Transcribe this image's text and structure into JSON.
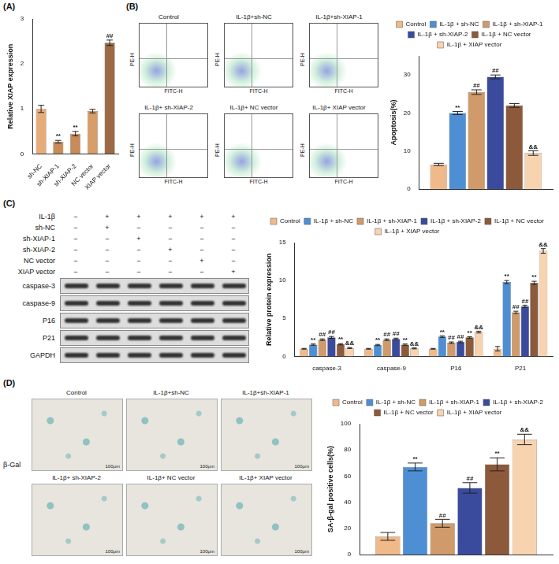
{
  "chart_data": [
    {
      "panel": "(A)",
      "type": "bar",
      "categories": [
        "sh-NC",
        "sh-XIAP-1",
        "sh-XIAP-2",
        "NC vector",
        "XIAP vector"
      ],
      "values": [
        1.0,
        0.27,
        0.45,
        0.95,
        2.47
      ],
      "errors": [
        0.08,
        0.03,
        0.05,
        0.04,
        0.06
      ],
      "significance": [
        "",
        "**",
        "**",
        "",
        "##"
      ],
      "colors": [
        "#e6ad7a",
        "#c98b57",
        "#c98b57",
        "#d79d69",
        "#9c6a44"
      ],
      "y_label": "Relative XIAP expression",
      "ylim": [
        0,
        3
      ],
      "yticks": [
        0,
        1,
        2,
        3
      ],
      "grid": false
    },
    {
      "panel": "(B)",
      "type": "bar",
      "categories": [
        null
      ],
      "series": [
        {
          "name": "Control",
          "color": "#f0b98a",
          "values": [
            6.5
          ],
          "errors": [
            0.3
          ],
          "significance": [
            ""
          ]
        },
        {
          "name": "IL-1β + sh-NC",
          "color": "#4e8fd4",
          "values": [
            20
          ],
          "errors": [
            0.4
          ],
          "significance": [
            "**"
          ]
        },
        {
          "name": "IL-1β + sh-XIAP-1",
          "color": "#d09a6a",
          "values": [
            25.5
          ],
          "errors": [
            0.6
          ],
          "significance": [
            "##"
          ]
        },
        {
          "name": "IL-1β + sh-XIAP-2",
          "color": "#3a4a9c",
          "values": [
            29.5
          ],
          "errors": [
            0.5
          ],
          "significance": [
            "##"
          ]
        },
        {
          "name": "IL-1β + NC vector",
          "color": "#8c5a3a",
          "values": [
            22
          ],
          "errors": [
            0.5
          ],
          "significance": [
            ""
          ]
        },
        {
          "name": "IL-1β + XIAP vector",
          "color": "#f7d3b0",
          "values": [
            9.5
          ],
          "errors": [
            0.6
          ],
          "significance": [
            "&&"
          ]
        }
      ],
      "y_label": "Apoptosis(%)",
      "ylim": [
        0,
        35
      ],
      "yticks": [
        0,
        10,
        20,
        30
      ],
      "grid": false,
      "legend": "top",
      "tick_labels": "y"
    },
    {
      "panel": "(C)",
      "type": "bar",
      "categories": [
        "caspase-3",
        "caspase-9",
        "P16",
        "P21"
      ],
      "series": [
        {
          "name": "Control",
          "color": "#f0b98a",
          "values": [
            1.0,
            1.0,
            1.0,
            1.0
          ],
          "errors": [
            0.05,
            0.05,
            0.05,
            0.3
          ],
          "significance": [
            "",
            "",
            "",
            ""
          ]
        },
        {
          "name": "IL-1β + sh-NC",
          "color": "#4e8fd4",
          "values": [
            1.55,
            1.5,
            2.6,
            9.8
          ],
          "errors": [
            0.08,
            0.08,
            0.1,
            0.2
          ],
          "significance": [
            "**",
            "**",
            "**",
            "**"
          ]
        },
        {
          "name": "IL-1β + sh-XIAP-1",
          "color": "#d09a6a",
          "values": [
            2.2,
            2.2,
            1.8,
            5.8
          ],
          "errors": [
            0.1,
            0.1,
            0.1,
            0.15
          ],
          "significance": [
            "##",
            "##",
            "##",
            "##"
          ]
        },
        {
          "name": "IL-1β + sh-XIAP-2",
          "color": "#3a4a9c",
          "values": [
            2.5,
            2.3,
            1.9,
            6.6
          ],
          "errors": [
            0.12,
            0.1,
            0.1,
            0.15
          ],
          "significance": [
            "##",
            "##",
            "##",
            "##"
          ]
        },
        {
          "name": "IL-1β + NC vector",
          "color": "#8c5a3a",
          "values": [
            1.6,
            1.55,
            2.5,
            9.7
          ],
          "errors": [
            0.08,
            0.08,
            0.1,
            0.2
          ],
          "significance": [
            "**",
            "**",
            "**",
            "**"
          ]
        },
        {
          "name": "IL-1β + XIAP vector",
          "color": "#f7d3b0",
          "values": [
            1.1,
            1.05,
            3.2,
            13.9
          ],
          "errors": [
            0.06,
            0.06,
            0.12,
            0.3
          ],
          "significance": [
            "&&",
            "&&",
            "&&",
            "&&"
          ]
        }
      ],
      "y_label": "Relative protein expression",
      "ylim": [
        0,
        15
      ],
      "yticks": [
        0,
        5,
        10,
        15
      ],
      "grid": false,
      "legend": "top"
    },
    {
      "panel": "(D)",
      "type": "bar",
      "categories": [
        null
      ],
      "series": [
        {
          "name": "Control",
          "color": "#f0b98a",
          "values": [
            14
          ],
          "errors": [
            3
          ],
          "significance": [
            ""
          ]
        },
        {
          "name": "IL-1β + sh-NC",
          "color": "#4e8fd4",
          "values": [
            67
          ],
          "errors": [
            3
          ],
          "significance": [
            "**"
          ]
        },
        {
          "name": "IL-1β + sh-XIAP-1",
          "color": "#d09a6a",
          "values": [
            24
          ],
          "errors": [
            3
          ],
          "significance": [
            "##"
          ]
        },
        {
          "name": "IL-1β + sh-XIAP-2",
          "color": "#3a4a9c",
          "values": [
            51
          ],
          "errors": [
            4
          ],
          "significance": [
            "##"
          ]
        },
        {
          "name": "IL-1β + NC vector",
          "color": "#8c5a3a",
          "values": [
            69
          ],
          "errors": [
            5
          ],
          "significance": [
            "**"
          ]
        },
        {
          "name": "IL-1β + XIAP vector",
          "color": "#f7d3b0",
          "values": [
            88
          ],
          "errors": [
            4
          ],
          "significance": [
            "&&"
          ]
        }
      ],
      "y_label": "SA-β-gal positive cells(%)",
      "ylim": [
        0,
        100
      ],
      "yticks": [
        0,
        20,
        40,
        60,
        80,
        100
      ],
      "grid": false,
      "legend": "top",
      "tick_labels": "y"
    }
  ],
  "flow": {
    "x_label": "FITC-H",
    "y_label": "PE-H",
    "titles": [
      "Control",
      "IL-1β+sh-NC",
      "IL-1β+sh-XIAP-1",
      "IL-1β+ sh-XIAP-2",
      "IL-1β+ NC vector",
      "IL-1β+ XIAP vector"
    ]
  },
  "blot": {
    "conditions": [
      {
        "label": "IL-1β",
        "marks": [
          "−",
          "+",
          "+",
          "+",
          "+",
          "+"
        ]
      },
      {
        "label": "sh-NC",
        "marks": [
          "−",
          "+",
          "−",
          "−",
          "−",
          "−"
        ]
      },
      {
        "label": "sh-XIAP-1",
        "marks": [
          "−",
          "−",
          "+",
          "−",
          "−",
          "−"
        ]
      },
      {
        "label": "sh-XIAP-2",
        "marks": [
          "−",
          "−",
          "−",
          "+",
          "−",
          "−"
        ]
      },
      {
        "label": "NC vector",
        "marks": [
          "−",
          "−",
          "−",
          "−",
          "+",
          "−"
        ]
      },
      {
        "label": "XIAP vector",
        "marks": [
          "−",
          "−",
          "−",
          "−",
          "−",
          "+"
        ]
      }
    ],
    "bands": [
      "caspase-3",
      "caspase-9",
      "P16",
      "P21",
      "GAPDH"
    ]
  },
  "images": {
    "row_label": "β-Gal",
    "scale": "100μm",
    "titles": [
      "Control",
      "IL-1β+sh-NC",
      "IL-1β+sh-XIAP-1",
      "IL-1β+ sh-XIAP-2",
      "IL-1β+ NC vector",
      "IL-1β+ XIAP vector"
    ]
  }
}
